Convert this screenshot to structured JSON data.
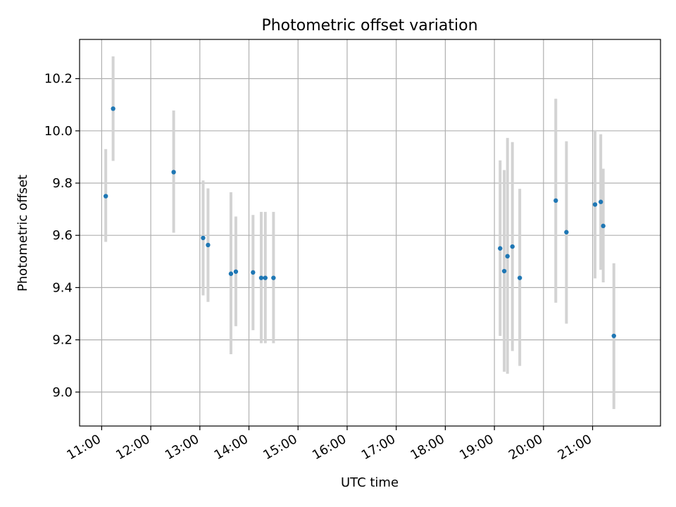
{
  "chart_data": {
    "type": "scatter",
    "title": "Photometric offset variation",
    "xlabel": "UTC time",
    "ylabel": "Photometric offset",
    "grid": true,
    "x_unit": "UTC time of day",
    "xlim": [
      "10:33",
      "22:23"
    ],
    "ylim": [
      8.87,
      10.35
    ],
    "x_ticks": [
      "11:00",
      "12:00",
      "13:00",
      "14:00",
      "15:00",
      "16:00",
      "17:00",
      "18:00",
      "19:00",
      "20:00",
      "21:00"
    ],
    "y_ticks": [
      "9.0",
      "9.2",
      "9.4",
      "9.6",
      "9.8",
      "10.0",
      "10.2"
    ],
    "colors": {
      "marker": "#1f77b4",
      "errorbar": "#d3d3d3",
      "grid": "#b0b0b0"
    },
    "series": [
      {
        "points": [
          {
            "x": "11:05",
            "y": 9.75,
            "low": 9.575,
            "high": 9.93
          },
          {
            "x": "11:14",
            "y": 10.085,
            "low": 9.885,
            "high": 10.285
          },
          {
            "x": "12:28",
            "y": 9.842,
            "low": 9.61,
            "high": 10.078
          },
          {
            "x": "13:04",
            "y": 9.59,
            "low": 9.37,
            "high": 9.81
          },
          {
            "x": "13:10",
            "y": 9.563,
            "low": 9.345,
            "high": 9.78
          },
          {
            "x": "13:38",
            "y": 9.453,
            "low": 9.145,
            "high": 9.765
          },
          {
            "x": "13:44",
            "y": 9.461,
            "low": 9.252,
            "high": 9.672
          },
          {
            "x": "14:05",
            "y": 9.458,
            "low": 9.237,
            "high": 9.678
          },
          {
            "x": "14:15",
            "y": 9.437,
            "low": 9.187,
            "high": 9.69
          },
          {
            "x": "14:20",
            "y": 9.437,
            "low": 9.187,
            "high": 9.69
          },
          {
            "x": "14:30",
            "y": 9.437,
            "low": 9.187,
            "high": 9.69
          },
          {
            "x": "19:07",
            "y": 9.55,
            "low": 9.215,
            "high": 9.887
          },
          {
            "x": "19:12",
            "y": 9.463,
            "low": 9.078,
            "high": 9.85
          },
          {
            "x": "19:16",
            "y": 9.52,
            "low": 9.07,
            "high": 9.973
          },
          {
            "x": "19:22",
            "y": 9.557,
            "low": 9.157,
            "high": 9.957
          },
          {
            "x": "19:31",
            "y": 9.437,
            "low": 9.1,
            "high": 9.778
          },
          {
            "x": "20:15",
            "y": 9.733,
            "low": 9.342,
            "high": 10.123
          },
          {
            "x": "20:28",
            "y": 9.612,
            "low": 9.262,
            "high": 9.96
          },
          {
            "x": "21:03",
            "y": 9.718,
            "low": 9.435,
            "high": 10.003
          },
          {
            "x": "21:10",
            "y": 9.728,
            "low": 9.468,
            "high": 9.987
          },
          {
            "x": "21:13",
            "y": 9.636,
            "low": 9.42,
            "high": 9.855
          },
          {
            "x": "21:26",
            "y": 9.215,
            "low": 8.935,
            "high": 9.493
          }
        ]
      }
    ]
  }
}
